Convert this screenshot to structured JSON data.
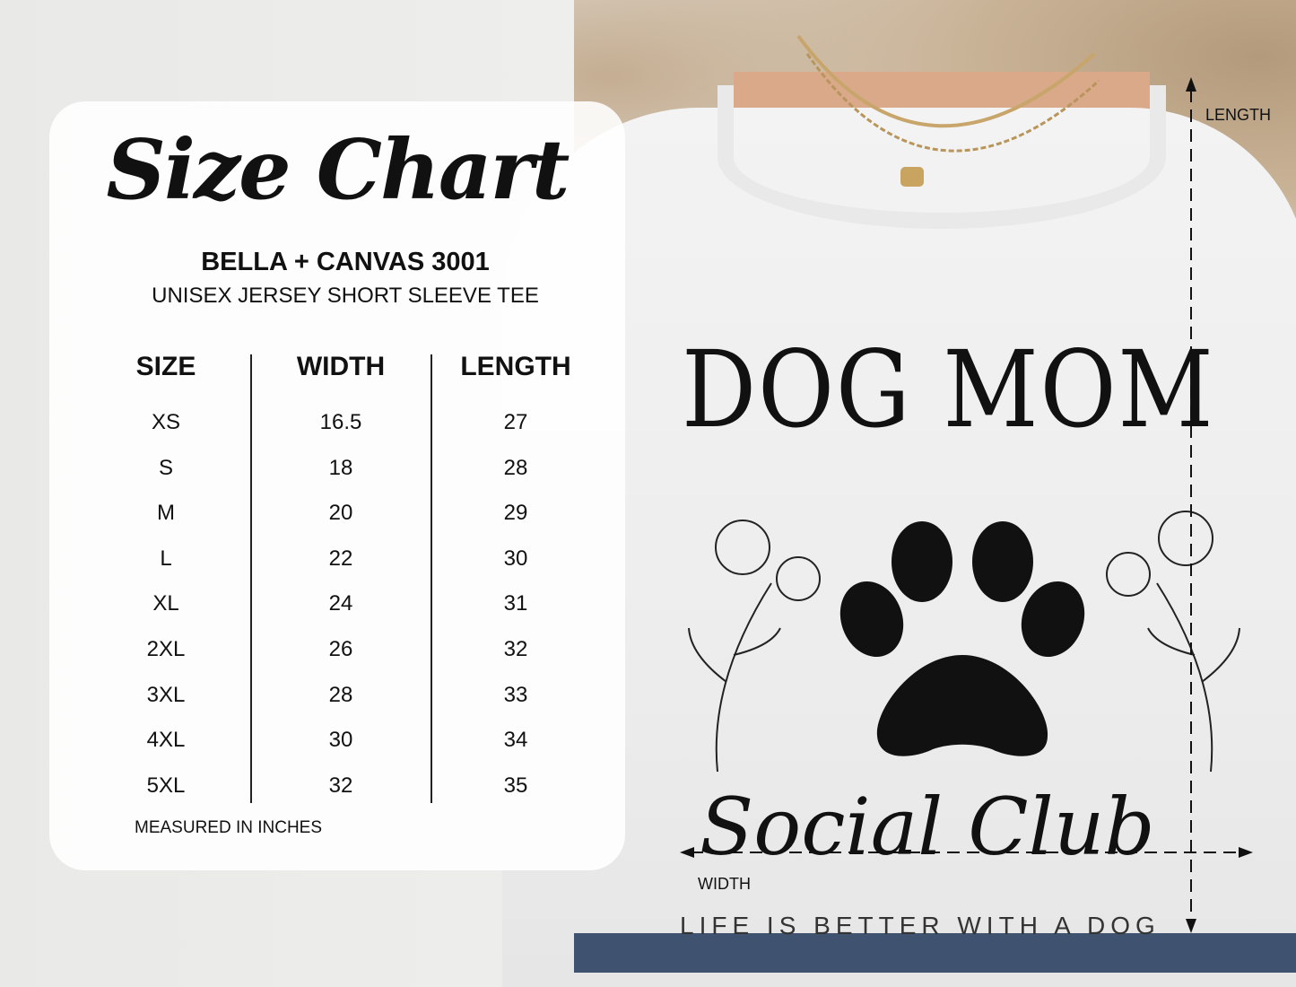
{
  "chart": {
    "title": "Size Chart",
    "brand": "BELLA + CANVAS 3001",
    "product": "UNISEX JERSEY SHORT SLEEVE TEE",
    "columns": [
      "SIZE",
      "WIDTH",
      "LENGTH"
    ],
    "rows": [
      [
        "XS",
        "16.5",
        "27"
      ],
      [
        "S",
        "18",
        "28"
      ],
      [
        "M",
        "20",
        "29"
      ],
      [
        "L",
        "22",
        "30"
      ],
      [
        "XL",
        "24",
        "31"
      ],
      [
        "2XL",
        "26",
        "32"
      ],
      [
        "3XL",
        "28",
        "33"
      ],
      [
        "4XL",
        "30",
        "34"
      ],
      [
        "5XL",
        "32",
        "35"
      ]
    ],
    "note": "MEASURED IN INCHES"
  },
  "shirt": {
    "headline": "DOG MOM",
    "script": "Social Club",
    "tagline": "LIFE IS BETTER WITH A DOG",
    "length_label": "LENGTH",
    "width_label": "WIDTH",
    "icons": [
      "paw-print-icon",
      "flower-icon"
    ]
  }
}
